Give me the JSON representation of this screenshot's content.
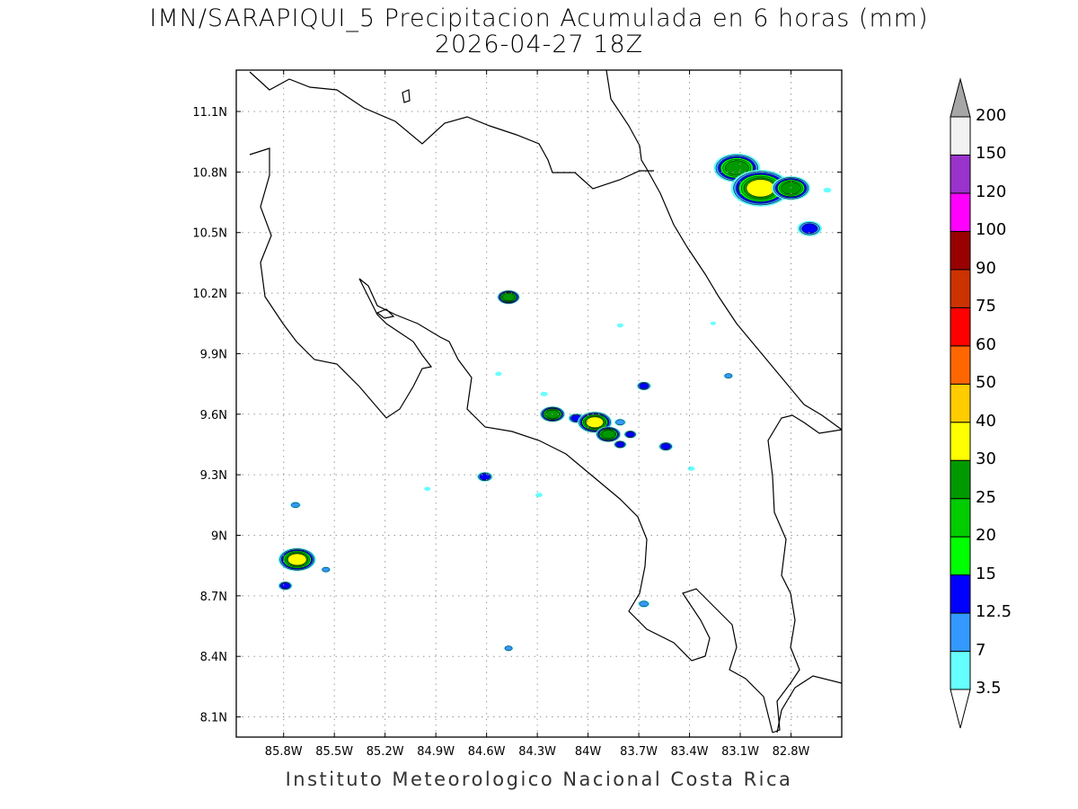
{
  "title": "IMN/SARAPIQUI_5 Precipitacion Acumulada en 6 horas (mm)",
  "subtitle": "2026-04-27 18Z",
  "footer": "Instituto Meteorologico Nacional Costa Rica",
  "map": {
    "lon_range_west": [
      86.08,
      82.5
    ],
    "lat_range": [
      8.0,
      11.305
    ],
    "lon_ticks": [
      "85.8W",
      "85.5W",
      "85.2W",
      "84.9W",
      "84.6W",
      "84.3W",
      "84W",
      "83.7W",
      "83.4W",
      "83.1W",
      "82.8W"
    ],
    "lon_tick_values": [
      85.8,
      85.5,
      85.2,
      84.9,
      84.6,
      84.3,
      84.0,
      83.7,
      83.4,
      83.1,
      82.8
    ],
    "lat_ticks": [
      "11.1N",
      "10.8N",
      "10.5N",
      "10.2N",
      "9.9N",
      "9.6N",
      "9.3N",
      "9N",
      "8.7N",
      "8.4N",
      "8.1N"
    ],
    "lat_tick_values": [
      11.1,
      10.8,
      10.5,
      10.2,
      9.9,
      9.6,
      9.3,
      9.0,
      8.7,
      8.4,
      8.1
    ]
  },
  "colorbar": {
    "labels": [
      "3.5",
      "7",
      "12.5",
      "15",
      "20",
      "25",
      "30",
      "40",
      "50",
      "60",
      "75",
      "90",
      "100",
      "120",
      "150",
      "200"
    ],
    "colors": [
      "#66ffff",
      "#3399ff",
      "#0000ff",
      "#00ff00",
      "#00cc00",
      "#009900",
      "#ffff00",
      "#ffcc00",
      "#ff6600",
      "#ff0000",
      "#cc3300",
      "#990000",
      "#ff00ff",
      "#9933cc",
      "#f2f2f2"
    ],
    "over_color": "#a6a6a6",
    "under_color": "#ffffff"
  },
  "precip_cells": [
    {
      "lon": 83.12,
      "lat": 10.82,
      "max_level": 5,
      "w": 1.6
    },
    {
      "lon": 82.98,
      "lat": 10.72,
      "max_level": 6,
      "w": 1.8
    },
    {
      "lon": 82.8,
      "lat": 10.72,
      "max_level": 5,
      "w": 1.3
    },
    {
      "lon": 82.69,
      "lat": 10.52,
      "max_level": 2,
      "w": 1.4
    },
    {
      "lon": 84.47,
      "lat": 10.18,
      "max_level": 5,
      "w": 0.7
    },
    {
      "lon": 84.21,
      "lat": 9.6,
      "max_level": 5,
      "w": 0.8
    },
    {
      "lon": 84.07,
      "lat": 9.58,
      "max_level": 2,
      "w": 0.8
    },
    {
      "lon": 83.96,
      "lat": 9.56,
      "max_level": 6,
      "w": 1.0
    },
    {
      "lon": 83.88,
      "lat": 9.5,
      "max_level": 5,
      "w": 0.8
    },
    {
      "lon": 83.81,
      "lat": 9.56,
      "max_level": 1,
      "w": 0.7
    },
    {
      "lon": 83.81,
      "lat": 9.45,
      "max_level": 2,
      "w": 0.6
    },
    {
      "lon": 83.75,
      "lat": 9.5,
      "max_level": 2,
      "w": 0.6
    },
    {
      "lon": 83.67,
      "lat": 9.74,
      "max_level": 2,
      "w": 0.7
    },
    {
      "lon": 83.54,
      "lat": 9.44,
      "max_level": 2,
      "w": 0.7
    },
    {
      "lon": 84.61,
      "lat": 9.29,
      "max_level": 2,
      "w": 0.8
    },
    {
      "lon": 85.72,
      "lat": 8.88,
      "max_level": 6,
      "w": 1.1
    },
    {
      "lon": 85.79,
      "lat": 8.75,
      "max_level": 2,
      "w": 0.7
    },
    {
      "lon": 85.73,
      "lat": 9.15,
      "max_level": 1,
      "w": 0.6
    },
    {
      "lon": 83.17,
      "lat": 9.79,
      "max_level": 1,
      "w": 0.5
    },
    {
      "lon": 84.47,
      "lat": 8.44,
      "max_level": 1,
      "w": 0.5
    },
    {
      "lon": 83.67,
      "lat": 8.66,
      "max_level": 1,
      "w": 0.7
    },
    {
      "lon": 85.55,
      "lat": 8.83,
      "max_level": 1,
      "w": 0.5
    },
    {
      "lon": 82.585,
      "lat": 10.71,
      "max_level": 0,
      "w": 0.6
    },
    {
      "lon": 84.26,
      "lat": 9.7,
      "max_level": 0,
      "w": 0.5
    },
    {
      "lon": 84.29,
      "lat": 9.2,
      "max_level": 0,
      "w": 0.5
    },
    {
      "lon": 83.39,
      "lat": 9.33,
      "max_level": 0,
      "w": 0.5
    },
    {
      "lon": 83.81,
      "lat": 10.04,
      "max_level": 0,
      "w": 0.4
    },
    {
      "lon": 84.53,
      "lat": 9.8,
      "max_level": 0,
      "w": 0.4
    },
    {
      "lon": 84.95,
      "lat": 9.23,
      "max_level": 0,
      "w": 0.4
    },
    {
      "lon": 83.26,
      "lat": 10.05,
      "max_level": 0,
      "w": 0.3
    }
  ]
}
